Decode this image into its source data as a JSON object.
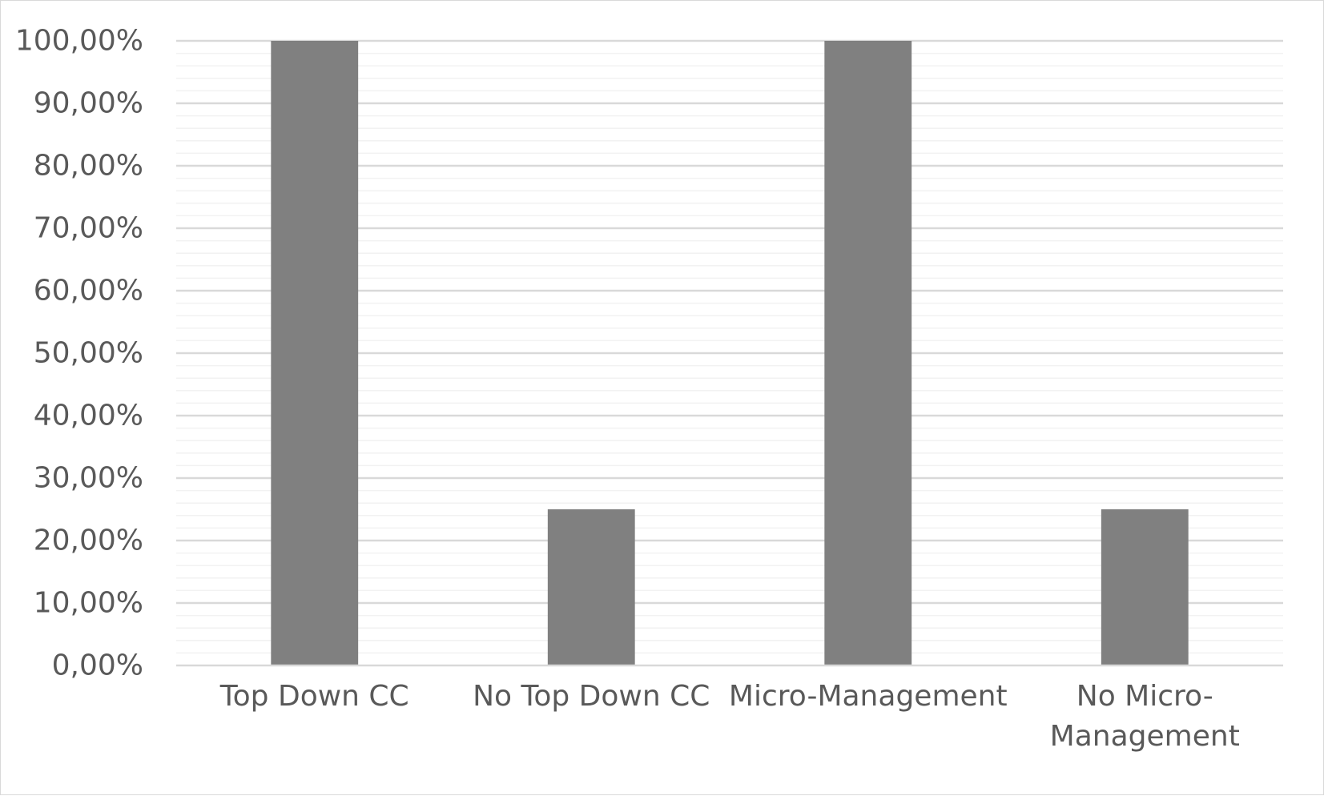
{
  "chart_data": {
    "type": "bar",
    "categories": [
      "Top Down CC",
      "No Top Down CC",
      "Micro-Management",
      "No Micro-Management"
    ],
    "category_lines": [
      [
        "Top Down CC"
      ],
      [
        "No Top Down CC"
      ],
      [
        "Micro-Management"
      ],
      [
        "No Micro-",
        "Management"
      ]
    ],
    "values": [
      100,
      25,
      100,
      25
    ],
    "title": "",
    "xlabel": "",
    "ylabel": "",
    "ylim": [
      0,
      100
    ],
    "yticks": [
      0,
      10,
      20,
      30,
      40,
      50,
      60,
      70,
      80,
      90,
      100
    ],
    "ytick_labels": [
      "0,00%",
      "10,00%",
      "20,00%",
      "30,00%",
      "40,00%",
      "50,00%",
      "60,00%",
      "70,00%",
      "80,00%",
      "90,00%",
      "100,00%"
    ],
    "minor_grid_step": 2,
    "grid": true,
    "legend": "none",
    "colors": {
      "bar": "#808080",
      "major_grid": "#d9d9d9",
      "minor_grid": "#f2f2f2",
      "axis": "#d9d9d9",
      "text": "#595959"
    }
  }
}
